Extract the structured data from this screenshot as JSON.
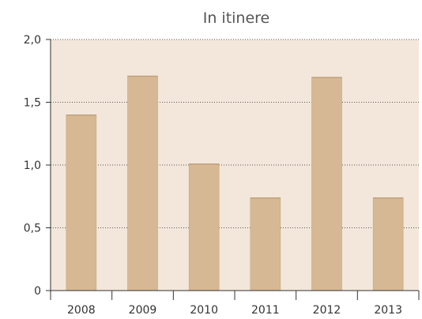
{
  "chart_data": {
    "type": "bar",
    "title": "In itinere",
    "xlabel": "",
    "ylabel": "",
    "categories": [
      "2008",
      "2009",
      "2010",
      "2011",
      "2012",
      "2013"
    ],
    "values": [
      1.4,
      1.71,
      1.01,
      0.74,
      1.7,
      0.74
    ],
    "ylim": [
      0,
      2.0
    ],
    "yticks": [
      0,
      0.5,
      1.0,
      1.5,
      2.0
    ],
    "ytick_labels": [
      "0",
      "0,5",
      "1,0",
      "1,5",
      "2,0"
    ],
    "grid": true,
    "legend": "none",
    "colors": {
      "bar": "#d6b994",
      "plot_background": "#f3e7db",
      "grid": "#555555",
      "axis": "#333333"
    }
  }
}
